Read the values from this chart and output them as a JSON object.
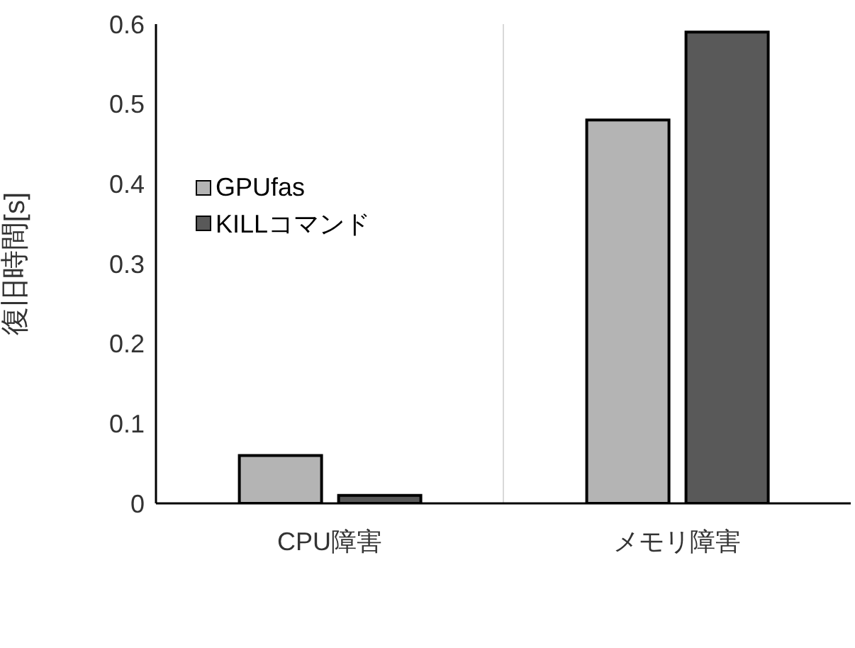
{
  "chart_data": {
    "type": "bar",
    "ylabel": "復旧時間[s]",
    "categories": [
      "CPU障害",
      "メモリ障害"
    ],
    "series": [
      {
        "name": "GPUfas",
        "color": "#b4b4b4",
        "values": [
          0.06,
          0.48
        ]
      },
      {
        "name": "KILLコマンド",
        "color": "#595959",
        "values": [
          0.01,
          0.59
        ]
      }
    ],
    "ylim": [
      0,
      0.6
    ],
    "yticks": [
      0,
      0.1,
      0.2,
      0.3,
      0.4,
      0.5,
      0.6
    ],
    "grid": "x",
    "legend": "top left"
  }
}
